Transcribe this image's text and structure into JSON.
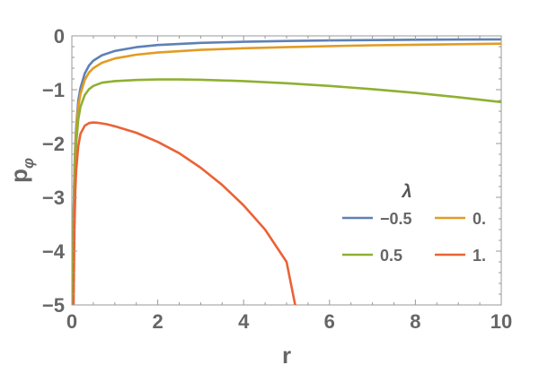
{
  "chart_data": {
    "type": "line",
    "xlabel": "r",
    "ylabel": "pφ",
    "ylabel_main": "p",
    "ylabel_sub": "φ",
    "xlim": [
      0,
      10
    ],
    "ylim": [
      -5,
      0
    ],
    "xticks": [
      "0",
      "2",
      "4",
      "6",
      "8",
      "10"
    ],
    "yticks": [
      "0",
      "−1",
      "−2",
      "−3",
      "−4",
      "−5"
    ],
    "grid": false,
    "legend": {
      "title": "λ",
      "placement": "right-lower"
    },
    "series": [
      {
        "name": "−0.5",
        "color": "#5E81B5",
        "x": [
          0.02,
          0.04,
          0.06,
          0.08,
          0.1,
          0.15,
          0.2,
          0.3,
          0.4,
          0.5,
          0.7,
          1,
          1.5,
          2,
          3,
          4,
          5,
          6,
          7,
          8,
          9,
          10
        ],
        "y": [
          -5,
          -3.3,
          -2.5,
          -2.0,
          -1.7,
          -1.2,
          -0.97,
          -0.7,
          -0.55,
          -0.46,
          -0.36,
          -0.28,
          -0.21,
          -0.17,
          -0.13,
          -0.11,
          -0.095,
          -0.085,
          -0.078,
          -0.072,
          -0.068,
          -0.065
        ]
      },
      {
        "name": "0.",
        "color": "#E19C24",
        "x": [
          0.02,
          0.04,
          0.06,
          0.08,
          0.1,
          0.15,
          0.2,
          0.3,
          0.4,
          0.5,
          0.7,
          1,
          1.5,
          2,
          3,
          4,
          5,
          6,
          7,
          8,
          9,
          10
        ],
        "y": [
          -5,
          -3.4,
          -2.6,
          -2.1,
          -1.8,
          -1.32,
          -1.08,
          -0.82,
          -0.68,
          -0.6,
          -0.5,
          -0.42,
          -0.35,
          -0.31,
          -0.26,
          -0.23,
          -0.21,
          -0.19,
          -0.175,
          -0.165,
          -0.155,
          -0.145
        ]
      },
      {
        "name": "0.5",
        "color": "#8FB032",
        "x": [
          0.02,
          0.04,
          0.06,
          0.08,
          0.1,
          0.15,
          0.2,
          0.3,
          0.4,
          0.5,
          0.7,
          1,
          1.5,
          2,
          2.5,
          3,
          4,
          5,
          6,
          7,
          8,
          9,
          10
        ],
        "y": [
          -5,
          -3.6,
          -2.8,
          -2.3,
          -2.0,
          -1.55,
          -1.32,
          -1.1,
          -0.99,
          -0.93,
          -0.87,
          -0.84,
          -0.82,
          -0.81,
          -0.81,
          -0.815,
          -0.84,
          -0.88,
          -0.93,
          -0.99,
          -1.06,
          -1.14,
          -1.23
        ]
      },
      {
        "name": "1.",
        "color": "#EB6235",
        "x": [
          0.04,
          0.06,
          0.08,
          0.1,
          0.15,
          0.2,
          0.3,
          0.4,
          0.5,
          0.6,
          0.8,
          1,
          1.5,
          2,
          2.5,
          3,
          3.5,
          4,
          4.5,
          5,
          5.2
        ],
        "y": [
          -5,
          -3.6,
          -2.9,
          -2.5,
          -2.05,
          -1.82,
          -1.67,
          -1.62,
          -1.61,
          -1.615,
          -1.64,
          -1.68,
          -1.8,
          -1.97,
          -2.18,
          -2.45,
          -2.77,
          -3.15,
          -3.6,
          -4.2,
          -5
        ]
      }
    ]
  }
}
